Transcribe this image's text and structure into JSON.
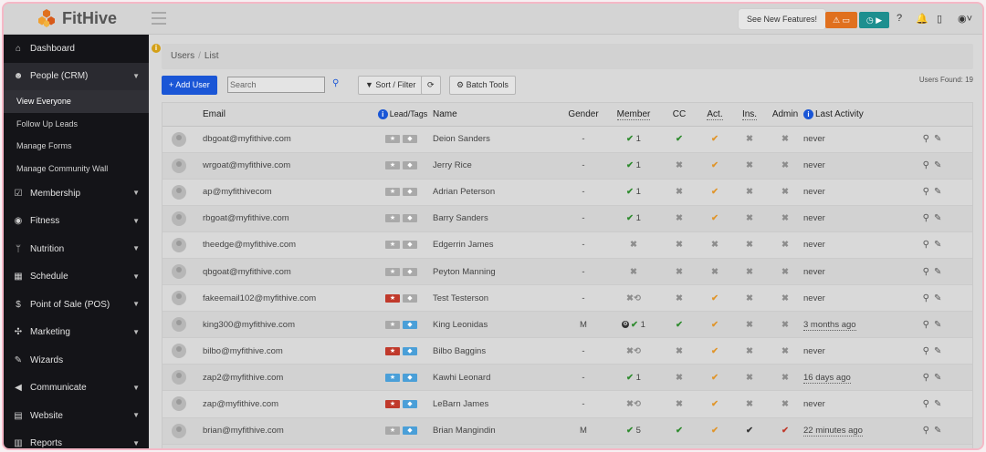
{
  "app": {
    "name": "FitHive",
    "see_new_features": "See New Features!",
    "colors": {
      "orange": "#e0701e",
      "teal": "#1d8f8f",
      "primary": "#1a56d6"
    }
  },
  "sidebar": {
    "items": [
      {
        "label": "Dashboard",
        "icon": "home-icon",
        "glyph": "⌂",
        "chevron": false
      },
      {
        "label": "People (CRM)",
        "icon": "users-icon",
        "glyph": "👥",
        "chevron": true,
        "active": true
      },
      {
        "label": "Membership",
        "icon": "checkbox-icon",
        "glyph": "☑",
        "chevron": true
      },
      {
        "label": "Fitness",
        "icon": "fitness-icon",
        "glyph": "◉",
        "chevron": true
      },
      {
        "label": "Nutrition",
        "icon": "cutlery-icon",
        "glyph": "🍴",
        "chevron": true
      },
      {
        "label": "Schedule",
        "icon": "calendar-icon",
        "glyph": "▦",
        "chevron": true
      },
      {
        "label": "Point of Sale (POS)",
        "icon": "dollar-icon",
        "glyph": "$",
        "chevron": true
      },
      {
        "label": "Marketing",
        "icon": "marketing-icon",
        "glyph": "✣",
        "chevron": true
      },
      {
        "label": "Wizards",
        "icon": "wand-icon",
        "glyph": "✎",
        "chevron": false
      },
      {
        "label": "Communicate",
        "icon": "megaphone-icon",
        "glyph": "📢",
        "chevron": true
      },
      {
        "label": "Website",
        "icon": "website-icon",
        "glyph": "▤",
        "chevron": true
      },
      {
        "label": "Reports",
        "icon": "chart-icon",
        "glyph": "▥",
        "chevron": true
      }
    ],
    "sub_items": [
      "View Everyone",
      "Follow Up Leads",
      "Manage Forms",
      "Manage Community Wall"
    ]
  },
  "breadcrumb": {
    "first": "Users",
    "second": "List"
  },
  "toolbar": {
    "add_user": "+ Add User",
    "search_placeholder": "Search",
    "sort_filter": "▼ Sort / Filter",
    "refresh": "⟳",
    "batch_tools": "⚙ Batch Tools",
    "users_found": "Users Found: 19"
  },
  "table": {
    "headers": {
      "email": "Email",
      "lead_tags": "Lead/Tags",
      "name": "Name",
      "gender": "Gender",
      "member": "Member",
      "cc": "CC",
      "act": "Act.",
      "ins": "Ins.",
      "admin": "Admin",
      "last_activity": "Last Activity"
    },
    "rows": [
      {
        "email": "dbgoat@myfithive.com",
        "tag1": "gray",
        "tag2": "gray",
        "name": "Deion Sanders",
        "gender": "-",
        "member": "check",
        "member_text": "1",
        "cc": "check",
        "act": "check-orange",
        "ins": "x",
        "admin": "x",
        "last": "never",
        "last_u": false
      },
      {
        "email": "wrgoat@myfithive.com",
        "tag1": "gray",
        "tag2": "gray",
        "name": "Jerry Rice",
        "gender": "-",
        "member": "check",
        "member_text": "1",
        "cc": "x",
        "act": "check-orange",
        "ins": "x",
        "admin": "x",
        "last": "never",
        "last_u": false
      },
      {
        "email": "ap@myfithivecom",
        "tag1": "gray",
        "tag2": "gray",
        "name": "Adrian Peterson",
        "gender": "-",
        "member": "check",
        "member_text": "1",
        "cc": "x",
        "act": "check-orange",
        "ins": "x",
        "admin": "x",
        "last": "never",
        "last_u": false
      },
      {
        "email": "rbgoat@myfithive.com",
        "tag1": "gray",
        "tag2": "gray",
        "name": "Barry Sanders",
        "gender": "-",
        "member": "check",
        "member_text": "1",
        "cc": "x",
        "act": "check-orange",
        "ins": "x",
        "admin": "x",
        "last": "never",
        "last_u": false
      },
      {
        "email": "theedge@myfithive.com",
        "tag1": "gray",
        "tag2": "gray",
        "name": "Edgerrin James",
        "gender": "-",
        "member": "x",
        "member_text": "",
        "cc": "x",
        "act": "x",
        "ins": "x",
        "admin": "x",
        "last": "never",
        "last_u": false
      },
      {
        "email": "qbgoat@myfithive.com",
        "tag1": "gray",
        "tag2": "gray",
        "name": "Peyton Manning",
        "gender": "-",
        "member": "x",
        "member_text": "",
        "cc": "x",
        "act": "x",
        "ins": "x",
        "admin": "x",
        "last": "never",
        "last_u": false
      },
      {
        "email": "fakeemail102@myfithive.com",
        "tag1": "red",
        "tag2": "gray",
        "name": "Test Testerson",
        "gender": "-",
        "member": "x-hist",
        "member_text": "",
        "cc": "x",
        "act": "check-orange",
        "ins": "x",
        "admin": "x",
        "last": "never",
        "last_u": false
      },
      {
        "email": "king300@myfithive.com",
        "tag1": "gray",
        "tag2": "blue",
        "name": "King Leonidas",
        "gender": "M",
        "member": "badge-check",
        "member_text": "1",
        "cc": "check",
        "act": "check-orange",
        "ins": "x",
        "admin": "x",
        "last": "3 months ago",
        "last_u": true
      },
      {
        "email": "bilbo@myfithive.com",
        "tag1": "red",
        "tag2": "blue",
        "name": "Bilbo Baggins",
        "gender": "-",
        "member": "x-hist",
        "member_text": "",
        "cc": "x",
        "act": "check-orange",
        "ins": "x",
        "admin": "x",
        "last": "never",
        "last_u": false
      },
      {
        "email": "zap2@myfithive.com",
        "tag1": "blue",
        "tag2": "blue",
        "name": "Kawhi Leonard",
        "gender": "-",
        "member": "check",
        "member_text": "1",
        "cc": "x",
        "act": "check-orange",
        "ins": "x",
        "admin": "x",
        "last": "16 days ago",
        "last_u": true
      },
      {
        "email": "zap@myfithive.com",
        "tag1": "red",
        "tag2": "blue",
        "name": "LeBarn James",
        "gender": "-",
        "member": "x-hist",
        "member_text": "",
        "cc": "x",
        "act": "check-orange",
        "ins": "x",
        "admin": "x",
        "last": "never",
        "last_u": false
      },
      {
        "email": "brian@myfithive.com",
        "tag1": "gray",
        "tag2": "blue",
        "name": "Brian Mangindin",
        "gender": "M",
        "member": "check",
        "member_text": "5",
        "cc": "check",
        "act": "check-orange",
        "ins": "check-dark",
        "admin": "check-red",
        "last": "22 minutes ago",
        "last_u": true
      }
    ]
  }
}
